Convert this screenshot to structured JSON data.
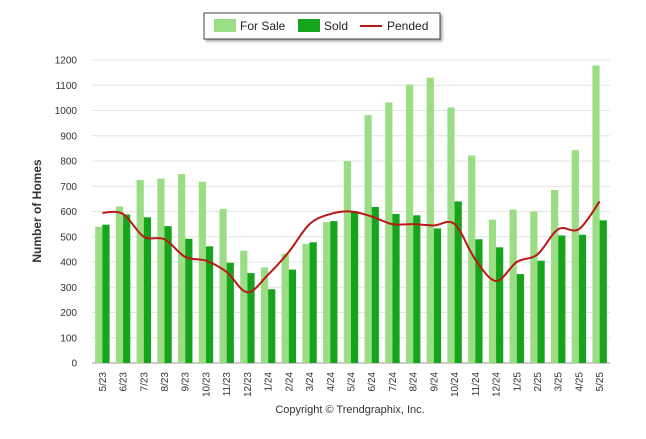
{
  "chart_data": {
    "type": "bar",
    "ylabel": "Number of Homes",
    "xlabel": "",
    "ylim": [
      0,
      1200
    ],
    "yticks": [
      0,
      100,
      200,
      300,
      400,
      500,
      600,
      700,
      800,
      900,
      1000,
      1100,
      1200
    ],
    "grid": true,
    "legend_position": "top-center",
    "categories": [
      "5/23",
      "6/23",
      "7/23",
      "8/23",
      "9/23",
      "10/23",
      "11/23",
      "12/23",
      "1/24",
      "2/24",
      "3/24",
      "4/24",
      "5/24",
      "6/24",
      "7/24",
      "8/24",
      "9/24",
      "10/24",
      "11/24",
      "12/24",
      "1/25",
      "2/25",
      "3/25",
      "4/25",
      "5/25"
    ],
    "series": [
      {
        "name": "For Sale",
        "type": "bar",
        "color": "#9bdd85",
        "values": [
          540,
          620,
          725,
          730,
          748,
          718,
          610,
          445,
          378,
          432,
          472,
          558,
          800,
          982,
          1032,
          1103,
          1130,
          1012,
          822,
          568,
          608,
          600,
          685,
          843,
          1178
        ]
      },
      {
        "name": "Sold",
        "type": "bar",
        "color": "#16a41c",
        "values": [
          548,
          588,
          577,
          542,
          492,
          462,
          397,
          356,
          292,
          370,
          478,
          562,
          598,
          618,
          590,
          585,
          533,
          640,
          490,
          458,
          352,
          405,
          505,
          508,
          565
        ]
      },
      {
        "name": "Pended",
        "type": "line",
        "color": "#bb1717",
        "values": [
          595,
          590,
          500,
          490,
          420,
          405,
          360,
          280,
          350,
          440,
          550,
          590,
          600,
          580,
          550,
          550,
          545,
          550,
          410,
          325,
          400,
          430,
          530,
          530,
          640
        ]
      }
    ]
  },
  "footer": {
    "copyright": "Copyright © Trendgraphix, Inc."
  }
}
